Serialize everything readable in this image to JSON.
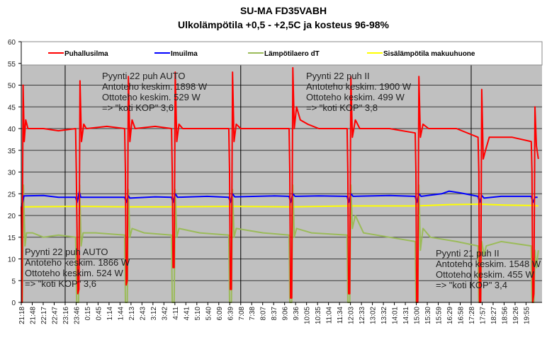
{
  "chart_data": {
    "type": "line",
    "title": "SU-MA FD35VABH",
    "subtitle": "Ulkolämpötila +0,5 - +2,5C ja kosteus 96-98%",
    "xlabel": "",
    "ylabel": "",
    "ylim": [
      0,
      60
    ],
    "yticks": [
      0,
      5,
      10,
      15,
      20,
      25,
      30,
      35,
      40,
      45,
      50,
      55,
      60
    ],
    "grid": true,
    "legend_position": "top",
    "x_unit": "minutes since 21:18",
    "xlim": [
      0,
      1400
    ],
    "x_tick_labels": [
      "21:18",
      "21:48",
      "22:17",
      "22:47",
      "23:16",
      "23:46",
      "0:15",
      "0:45",
      "1:14",
      "1:44",
      "2:13",
      "2:43",
      "3:12",
      "3:42",
      "4:11",
      "4:41",
      "5:10",
      "5:40",
      "6:09",
      "6:39",
      "7:08",
      "7:38",
      "8:07",
      "8:37",
      "9:06",
      "9:36",
      "10:05",
      "10:35",
      "11:04",
      "11:34",
      "12:03",
      "12:33",
      "13:02",
      "13:32",
      "14:01",
      "14:31",
      "15:00",
      "15:30",
      "15:59",
      "16:29",
      "16:58",
      "17:28",
      "17:57",
      "18:27",
      "18:56",
      "19:26",
      "19:55"
    ],
    "x_tick_step_minutes": 29.5,
    "separators_at_labels": [
      "23:16",
      "7:08",
      "17:28"
    ],
    "series": [
      {
        "name": "Puhallusilma",
        "color": "#ff0000",
        "points": [
          [
            0,
            22
          ],
          [
            2,
            0
          ],
          [
            5,
            50
          ],
          [
            8,
            37
          ],
          [
            12,
            42
          ],
          [
            18,
            40
          ],
          [
            60,
            40
          ],
          [
            100,
            39.5
          ],
          [
            146,
            40
          ],
          [
            148,
            30
          ],
          [
            152,
            2
          ],
          [
            155,
            3
          ],
          [
            158,
            51
          ],
          [
            162,
            37
          ],
          [
            168,
            41
          ],
          [
            175,
            40
          ],
          [
            230,
            40.5
          ],
          [
            278,
            40
          ],
          [
            280,
            30
          ],
          [
            282,
            4
          ],
          [
            285,
            5
          ],
          [
            288,
            52
          ],
          [
            292,
            37
          ],
          [
            298,
            42
          ],
          [
            306,
            40
          ],
          [
            360,
            40.5
          ],
          [
            404,
            40
          ],
          [
            406,
            30
          ],
          [
            408,
            8
          ],
          [
            411,
            8
          ],
          [
            414,
            53
          ],
          [
            418,
            37
          ],
          [
            424,
            41
          ],
          [
            434,
            40
          ],
          [
            500,
            40
          ],
          [
            558,
            40
          ],
          [
            560,
            30
          ],
          [
            562,
            3
          ],
          [
            565,
            3
          ],
          [
            568,
            53
          ],
          [
            572,
            37
          ],
          [
            578,
            41
          ],
          [
            590,
            40
          ],
          [
            680,
            40
          ],
          [
            720,
            40
          ],
          [
            722,
            30
          ],
          [
            724,
            1
          ],
          [
            727,
            1
          ],
          [
            730,
            54
          ],
          [
            734,
            40
          ],
          [
            740,
            45
          ],
          [
            750,
            42
          ],
          [
            770,
            41
          ],
          [
            800,
            40
          ],
          [
            876,
            40
          ],
          [
            878,
            30
          ],
          [
            880,
            2
          ],
          [
            883,
            2
          ],
          [
            886,
            52
          ],
          [
            890,
            38
          ],
          [
            898,
            42
          ],
          [
            910,
            40
          ],
          [
            990,
            40
          ],
          [
            1059,
            39
          ],
          [
            1061,
            30
          ],
          [
            1063,
            0
          ],
          [
            1066,
            0
          ],
          [
            1069,
            52
          ],
          [
            1073,
            38
          ],
          [
            1080,
            41
          ],
          [
            1095,
            40
          ],
          [
            1170,
            40
          ],
          [
            1228,
            38
          ],
          [
            1230,
            30
          ],
          [
            1232,
            0
          ],
          [
            1235,
            0
          ],
          [
            1238,
            49
          ],
          [
            1242,
            33
          ],
          [
            1248,
            35
          ],
          [
            1258,
            38
          ],
          [
            1320,
            38
          ],
          [
            1371,
            37
          ],
          [
            1373,
            30
          ],
          [
            1375,
            0
          ],
          [
            1378,
            2
          ],
          [
            1381,
            45
          ],
          [
            1385,
            36
          ],
          [
            1390,
            33
          ]
        ]
      },
      {
        "name": "Imuilma",
        "color": "#0000ff",
        "points": [
          [
            0,
            22
          ],
          [
            4,
            23
          ],
          [
            7,
            24.5
          ],
          [
            60,
            24.6
          ],
          [
            100,
            24.2
          ],
          [
            146,
            24.2
          ],
          [
            150,
            23
          ],
          [
            156,
            25.5
          ],
          [
            160,
            24.2
          ],
          [
            230,
            24.2
          ],
          [
            278,
            24.2
          ],
          [
            282,
            23
          ],
          [
            288,
            24.5
          ],
          [
            292,
            24
          ],
          [
            360,
            24.3
          ],
          [
            404,
            24.2
          ],
          [
            408,
            23
          ],
          [
            414,
            25
          ],
          [
            420,
            24.2
          ],
          [
            500,
            24.4
          ],
          [
            558,
            24.2
          ],
          [
            562,
            23
          ],
          [
            568,
            25
          ],
          [
            574,
            24.3
          ],
          [
            680,
            24.5
          ],
          [
            720,
            24.4
          ],
          [
            724,
            23
          ],
          [
            730,
            25
          ],
          [
            736,
            24.4
          ],
          [
            800,
            24.5
          ],
          [
            876,
            24.4
          ],
          [
            880,
            23
          ],
          [
            886,
            25
          ],
          [
            892,
            24.4
          ],
          [
            990,
            24.6
          ],
          [
            1059,
            24.4
          ],
          [
            1063,
            23
          ],
          [
            1069,
            25
          ],
          [
            1075,
            24.4
          ],
          [
            1130,
            25
          ],
          [
            1150,
            25.6
          ],
          [
            1180,
            25.2
          ],
          [
            1228,
            24.4
          ],
          [
            1232,
            23
          ],
          [
            1238,
            24.6
          ],
          [
            1244,
            24
          ],
          [
            1290,
            24.4
          ],
          [
            1371,
            24.4
          ],
          [
            1375,
            23
          ],
          [
            1381,
            24.2
          ],
          [
            1388,
            24.2
          ]
        ]
      },
      {
        "name": "Lämpötilaero dT",
        "color": "#9bbb59",
        "points": [
          [
            0,
            0
          ],
          [
            3,
            0
          ],
          [
            6,
            27
          ],
          [
            10,
            13
          ],
          [
            14,
            16
          ],
          [
            30,
            16
          ],
          [
            60,
            15
          ],
          [
            100,
            15.5
          ],
          [
            146,
            15
          ],
          [
            149,
            0
          ],
          [
            154,
            0
          ],
          [
            157,
            27
          ],
          [
            161,
            13
          ],
          [
            166,
            16
          ],
          [
            200,
            16
          ],
          [
            278,
            15.5
          ],
          [
            280,
            0
          ],
          [
            285,
            0
          ],
          [
            288,
            26
          ],
          [
            292,
            15
          ],
          [
            298,
            17
          ],
          [
            330,
            16
          ],
          [
            404,
            15.5
          ],
          [
            406,
            0
          ],
          [
            411,
            0
          ],
          [
            414,
            26
          ],
          [
            418,
            15
          ],
          [
            424,
            17
          ],
          [
            480,
            16
          ],
          [
            558,
            15.5
          ],
          [
            560,
            0
          ],
          [
            565,
            0
          ],
          [
            568,
            26
          ],
          [
            572,
            15
          ],
          [
            578,
            17
          ],
          [
            650,
            16
          ],
          [
            720,
            15.5
          ],
          [
            722,
            0
          ],
          [
            727,
            0
          ],
          [
            730,
            27
          ],
          [
            734,
            15
          ],
          [
            740,
            17
          ],
          [
            780,
            16
          ],
          [
            876,
            15.5
          ],
          [
            878,
            0
          ],
          [
            883,
            0
          ],
          [
            886,
            27
          ],
          [
            890,
            17
          ],
          [
            898,
            20
          ],
          [
            920,
            16
          ],
          [
            990,
            15
          ],
          [
            1059,
            14
          ],
          [
            1061,
            0
          ],
          [
            1066,
            0
          ],
          [
            1069,
            27
          ],
          [
            1073,
            12
          ],
          [
            1080,
            17
          ],
          [
            1100,
            15
          ],
          [
            1170,
            14
          ],
          [
            1228,
            13
          ],
          [
            1230,
            0
          ],
          [
            1235,
            0
          ],
          [
            1238,
            14
          ],
          [
            1244,
            11
          ],
          [
            1250,
            13
          ],
          [
            1290,
            14
          ],
          [
            1371,
            13
          ],
          [
            1373,
            0
          ],
          [
            1378,
            0
          ],
          [
            1381,
            12
          ],
          [
            1385,
            8
          ],
          [
            1390,
            12
          ]
        ]
      },
      {
        "name": "Sisälämpötila makuuhuone",
        "color": "#ffff00",
        "points": [
          [
            0,
            21.5
          ],
          [
            10,
            22
          ],
          [
            150,
            22.1
          ],
          [
            282,
            22
          ],
          [
            408,
            22
          ],
          [
            562,
            22.1
          ],
          [
            724,
            22
          ],
          [
            880,
            22.2
          ],
          [
            1063,
            22.2
          ],
          [
            1150,
            22.5
          ],
          [
            1232,
            22.6
          ],
          [
            1300,
            22.4
          ],
          [
            1375,
            22.3
          ],
          [
            1390,
            22.2
          ]
        ]
      }
    ],
    "annotations": [
      {
        "lines": [
          "Pyynti 22 puh AUTO",
          "Antoteho keskim. 1898 W",
          "Ottoteho keskim. 529 W",
          "=> \"koti KOP\" 3,6"
        ]
      },
      {
        "lines": [
          "Pyynti 22 puh II",
          "Antoteho keskim. 1900 W",
          "Ottoteho keskim. 499 W",
          "=> \"koti KOP\" 3,8"
        ]
      },
      {
        "lines": [
          "Pyynti 22 puh AUTO",
          "Antoteho keskim. 1866 W",
          "Ottoteho keskim. 524 W",
          "=> \"koti KOP\" 3,6"
        ]
      },
      {
        "lines": [
          "Pyynti 21 puh II",
          "Antoteho keskim. 1548 W",
          "Ottoteho keskim. 455 W",
          "=> \"koti KOP\" 3,4"
        ]
      }
    ]
  }
}
